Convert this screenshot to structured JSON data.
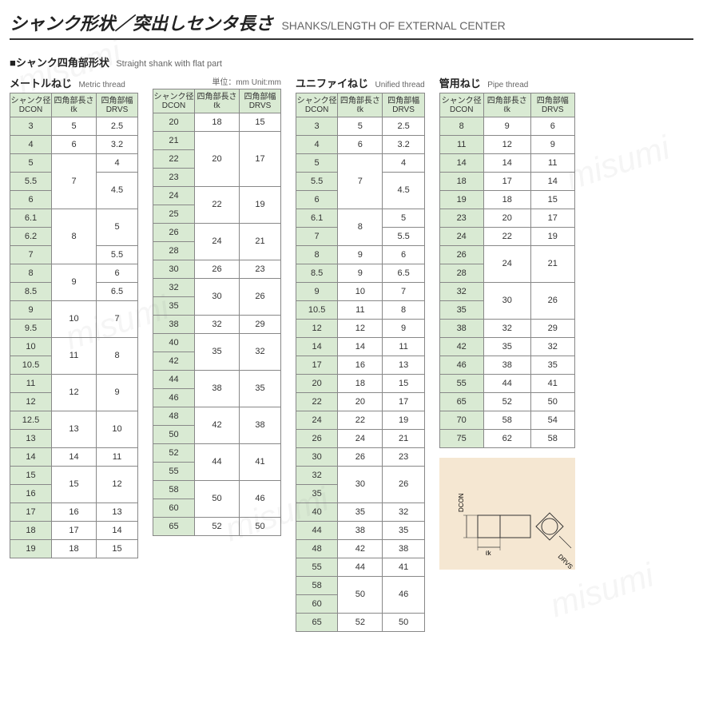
{
  "title": {
    "jp": "シャンク形状／突出しセンタ長さ",
    "en": "SHANKS/LENGTH OF EXTERNAL CENTER"
  },
  "subtitle": {
    "jp": "■シャンク四角部形状",
    "en": "Straight shank with flat part"
  },
  "unit_note": "単位：mm Unit:mm",
  "headers": {
    "dcon": {
      "l1": "シャンク径",
      "l2": "DCON"
    },
    "lk": {
      "l1": "四角部長さ",
      "l2": "ℓk"
    },
    "drvs": {
      "l1": "四角部幅",
      "l2": "DRVS"
    }
  },
  "sections": {
    "metric": {
      "jp": "メートルねじ",
      "en": "Metric thread"
    },
    "unified": {
      "jp": "ユニファイねじ",
      "en": "Unified thread"
    },
    "pipe": {
      "jp": "管用ねじ",
      "en": "Pipe thread"
    }
  },
  "colors": {
    "header_bg": "#d9ead3",
    "border": "#888888",
    "text": "#333333",
    "diagram_bg": "#f5e7d2"
  },
  "metric_a": [
    {
      "dcon": "3",
      "lk": "5",
      "drvs": "2.5",
      "lk_span": 1,
      "drvs_span": 1
    },
    {
      "dcon": "4",
      "lk": "6",
      "drvs": "3.2",
      "lk_span": 1,
      "drvs_span": 1
    },
    {
      "dcon": "5",
      "lk": "7",
      "drvs": "4",
      "lk_span": 3,
      "drvs_span": 1
    },
    {
      "dcon": "5.5",
      "lk": null,
      "drvs": "4.5",
      "lk_span": 0,
      "drvs_span": 2
    },
    {
      "dcon": "6",
      "lk": null,
      "drvs": null,
      "lk_span": 0,
      "drvs_span": 0
    },
    {
      "dcon": "6.1",
      "lk": "8",
      "drvs": "5",
      "lk_span": 3,
      "drvs_span": 2
    },
    {
      "dcon": "6.2",
      "lk": null,
      "drvs": null,
      "lk_span": 0,
      "drvs_span": 0
    },
    {
      "dcon": "7",
      "lk": null,
      "drvs": "5.5",
      "lk_span": 0,
      "drvs_span": 1
    },
    {
      "dcon": "8",
      "lk": "9",
      "drvs": "6",
      "lk_span": 2,
      "drvs_span": 1
    },
    {
      "dcon": "8.5",
      "lk": null,
      "drvs": "6.5",
      "lk_span": 0,
      "drvs_span": 1
    },
    {
      "dcon": "9",
      "lk": "10",
      "drvs": "7",
      "lk_span": 2,
      "drvs_span": 2
    },
    {
      "dcon": "9.5",
      "lk": null,
      "drvs": null,
      "lk_span": 0,
      "drvs_span": 0
    },
    {
      "dcon": "10",
      "lk": "11",
      "drvs": "8",
      "lk_span": 2,
      "drvs_span": 2
    },
    {
      "dcon": "10.5",
      "lk": null,
      "drvs": null,
      "lk_span": 0,
      "drvs_span": 0
    },
    {
      "dcon": "11",
      "lk": "12",
      "drvs": "9",
      "lk_span": 2,
      "drvs_span": 2
    },
    {
      "dcon": "12",
      "lk": null,
      "drvs": null,
      "lk_span": 0,
      "drvs_span": 0
    },
    {
      "dcon": "12.5",
      "lk": "13",
      "drvs": "10",
      "lk_span": 2,
      "drvs_span": 2
    },
    {
      "dcon": "13",
      "lk": null,
      "drvs": null,
      "lk_span": 0,
      "drvs_span": 0
    },
    {
      "dcon": "14",
      "lk": "14",
      "drvs": "11",
      "lk_span": 1,
      "drvs_span": 1
    },
    {
      "dcon": "15",
      "lk": "15",
      "drvs": "12",
      "lk_span": 2,
      "drvs_span": 2
    },
    {
      "dcon": "16",
      "lk": null,
      "drvs": null,
      "lk_span": 0,
      "drvs_span": 0
    },
    {
      "dcon": "17",
      "lk": "16",
      "drvs": "13",
      "lk_span": 1,
      "drvs_span": 1
    },
    {
      "dcon": "18",
      "lk": "17",
      "drvs": "14",
      "lk_span": 1,
      "drvs_span": 1
    },
    {
      "dcon": "19",
      "lk": "18",
      "drvs": "15",
      "lk_span": 1,
      "drvs_span": 1
    }
  ],
  "metric_b": [
    {
      "dcon": "20",
      "lk": "18",
      "drvs": "15",
      "lk_span": 1,
      "drvs_span": 1
    },
    {
      "dcon": "21",
      "lk": "20",
      "drvs": "17",
      "lk_span": 3,
      "drvs_span": 3
    },
    {
      "dcon": "22",
      "lk": null,
      "drvs": null,
      "lk_span": 0,
      "drvs_span": 0
    },
    {
      "dcon": "23",
      "lk": null,
      "drvs": null,
      "lk_span": 0,
      "drvs_span": 0
    },
    {
      "dcon": "24",
      "lk": "22",
      "drvs": "19",
      "lk_span": 2,
      "drvs_span": 2
    },
    {
      "dcon": "25",
      "lk": null,
      "drvs": null,
      "lk_span": 0,
      "drvs_span": 0
    },
    {
      "dcon": "26",
      "lk": "24",
      "drvs": "21",
      "lk_span": 2,
      "drvs_span": 2
    },
    {
      "dcon": "28",
      "lk": null,
      "drvs": null,
      "lk_span": 0,
      "drvs_span": 0
    },
    {
      "dcon": "30",
      "lk": "26",
      "drvs": "23",
      "lk_span": 1,
      "drvs_span": 1
    },
    {
      "dcon": "32",
      "lk": "30",
      "drvs": "26",
      "lk_span": 2,
      "drvs_span": 2
    },
    {
      "dcon": "35",
      "lk": null,
      "drvs": null,
      "lk_span": 0,
      "drvs_span": 0
    },
    {
      "dcon": "38",
      "lk": "32",
      "drvs": "29",
      "lk_span": 1,
      "drvs_span": 1
    },
    {
      "dcon": "40",
      "lk": "35",
      "drvs": "32",
      "lk_span": 2,
      "drvs_span": 2
    },
    {
      "dcon": "42",
      "lk": null,
      "drvs": null,
      "lk_span": 0,
      "drvs_span": 0
    },
    {
      "dcon": "44",
      "lk": "38",
      "drvs": "35",
      "lk_span": 2,
      "drvs_span": 2
    },
    {
      "dcon": "46",
      "lk": null,
      "drvs": null,
      "lk_span": 0,
      "drvs_span": 0
    },
    {
      "dcon": "48",
      "lk": "42",
      "drvs": "38",
      "lk_span": 2,
      "drvs_span": 2
    },
    {
      "dcon": "50",
      "lk": null,
      "drvs": null,
      "lk_span": 0,
      "drvs_span": 0
    },
    {
      "dcon": "52",
      "lk": "44",
      "drvs": "41",
      "lk_span": 2,
      "drvs_span": 2
    },
    {
      "dcon": "55",
      "lk": null,
      "drvs": null,
      "lk_span": 0,
      "drvs_span": 0
    },
    {
      "dcon": "58",
      "lk": "50",
      "drvs": "46",
      "lk_span": 2,
      "drvs_span": 2
    },
    {
      "dcon": "60",
      "lk": null,
      "drvs": null,
      "lk_span": 0,
      "drvs_span": 0
    },
    {
      "dcon": "65",
      "lk": "52",
      "drvs": "50",
      "lk_span": 1,
      "drvs_span": 1
    }
  ],
  "unified": [
    {
      "dcon": "3",
      "lk": "5",
      "drvs": "2.5",
      "lk_span": 1,
      "drvs_span": 1
    },
    {
      "dcon": "4",
      "lk": "6",
      "drvs": "3.2",
      "lk_span": 1,
      "drvs_span": 1
    },
    {
      "dcon": "5",
      "lk": "7",
      "drvs": "4",
      "lk_span": 3,
      "drvs_span": 1
    },
    {
      "dcon": "5.5",
      "lk": null,
      "drvs": "4.5",
      "lk_span": 0,
      "drvs_span": 2
    },
    {
      "dcon": "6",
      "lk": null,
      "drvs": null,
      "lk_span": 0,
      "drvs_span": 0
    },
    {
      "dcon": "6.1",
      "lk": "8",
      "drvs": "5",
      "lk_span": 2,
      "drvs_span": 1
    },
    {
      "dcon": "7",
      "lk": null,
      "drvs": "5.5",
      "lk_span": 0,
      "drvs_span": 1
    },
    {
      "dcon": "8",
      "lk": "9",
      "drvs": "6",
      "lk_span": 1,
      "drvs_span": 1
    },
    {
      "dcon": "8.5",
      "lk": "9",
      "drvs": "6.5",
      "lk_span": 1,
      "drvs_span": 1
    },
    {
      "dcon": "9",
      "lk": "10",
      "drvs": "7",
      "lk_span": 1,
      "drvs_span": 1
    },
    {
      "dcon": "10.5",
      "lk": "11",
      "drvs": "8",
      "lk_span": 1,
      "drvs_span": 1
    },
    {
      "dcon": "12",
      "lk": "12",
      "drvs": "9",
      "lk_span": 1,
      "drvs_span": 1
    },
    {
      "dcon": "14",
      "lk": "14",
      "drvs": "11",
      "lk_span": 1,
      "drvs_span": 1
    },
    {
      "dcon": "17",
      "lk": "16",
      "drvs": "13",
      "lk_span": 1,
      "drvs_span": 1
    },
    {
      "dcon": "20",
      "lk": "18",
      "drvs": "15",
      "lk_span": 1,
      "drvs_span": 1
    },
    {
      "dcon": "22",
      "lk": "20",
      "drvs": "17",
      "lk_span": 1,
      "drvs_span": 1
    },
    {
      "dcon": "24",
      "lk": "22",
      "drvs": "19",
      "lk_span": 1,
      "drvs_span": 1
    },
    {
      "dcon": "26",
      "lk": "24",
      "drvs": "21",
      "lk_span": 1,
      "drvs_span": 1
    },
    {
      "dcon": "30",
      "lk": "26",
      "drvs": "23",
      "lk_span": 1,
      "drvs_span": 1
    },
    {
      "dcon": "32",
      "lk": "30",
      "drvs": "26",
      "lk_span": 2,
      "drvs_span": 2
    },
    {
      "dcon": "35",
      "lk": null,
      "drvs": null,
      "lk_span": 0,
      "drvs_span": 0
    },
    {
      "dcon": "40",
      "lk": "35",
      "drvs": "32",
      "lk_span": 1,
      "drvs_span": 1
    },
    {
      "dcon": "44",
      "lk": "38",
      "drvs": "35",
      "lk_span": 1,
      "drvs_span": 1
    },
    {
      "dcon": "48",
      "lk": "42",
      "drvs": "38",
      "lk_span": 1,
      "drvs_span": 1
    },
    {
      "dcon": "55",
      "lk": "44",
      "drvs": "41",
      "lk_span": 1,
      "drvs_span": 1
    },
    {
      "dcon": "58",
      "lk": "50",
      "drvs": "46",
      "lk_span": 2,
      "drvs_span": 2
    },
    {
      "dcon": "60",
      "lk": null,
      "drvs": null,
      "lk_span": 0,
      "drvs_span": 0
    },
    {
      "dcon": "65",
      "lk": "52",
      "drvs": "50",
      "lk_span": 1,
      "drvs_span": 1
    }
  ],
  "pipe": [
    {
      "dcon": "8",
      "lk": "9",
      "drvs": "6",
      "lk_span": 1,
      "drvs_span": 1
    },
    {
      "dcon": "11",
      "lk": "12",
      "drvs": "9",
      "lk_span": 1,
      "drvs_span": 1
    },
    {
      "dcon": "14",
      "lk": "14",
      "drvs": "11",
      "lk_span": 1,
      "drvs_span": 1
    },
    {
      "dcon": "18",
      "lk": "17",
      "drvs": "14",
      "lk_span": 1,
      "drvs_span": 1
    },
    {
      "dcon": "19",
      "lk": "18",
      "drvs": "15",
      "lk_span": 1,
      "drvs_span": 1
    },
    {
      "dcon": "23",
      "lk": "20",
      "drvs": "17",
      "lk_span": 1,
      "drvs_span": 1
    },
    {
      "dcon": "24",
      "lk": "22",
      "drvs": "19",
      "lk_span": 1,
      "drvs_span": 1
    },
    {
      "dcon": "26",
      "lk": "24",
      "drvs": "21",
      "lk_span": 2,
      "drvs_span": 2
    },
    {
      "dcon": "28",
      "lk": null,
      "drvs": null,
      "lk_span": 0,
      "drvs_span": 0
    },
    {
      "dcon": "32",
      "lk": "30",
      "drvs": "26",
      "lk_span": 2,
      "drvs_span": 2
    },
    {
      "dcon": "35",
      "lk": null,
      "drvs": null,
      "lk_span": 0,
      "drvs_span": 0
    },
    {
      "dcon": "38",
      "lk": "32",
      "drvs": "29",
      "lk_span": 1,
      "drvs_span": 1
    },
    {
      "dcon": "42",
      "lk": "35",
      "drvs": "32",
      "lk_span": 1,
      "drvs_span": 1
    },
    {
      "dcon": "46",
      "lk": "38",
      "drvs": "35",
      "lk_span": 1,
      "drvs_span": 1
    },
    {
      "dcon": "55",
      "lk": "44",
      "drvs": "41",
      "lk_span": 1,
      "drvs_span": 1
    },
    {
      "dcon": "65",
      "lk": "52",
      "drvs": "50",
      "lk_span": 1,
      "drvs_span": 1
    },
    {
      "dcon": "70",
      "lk": "58",
      "drvs": "54",
      "lk_span": 1,
      "drvs_span": 1
    },
    {
      "dcon": "75",
      "lk": "62",
      "drvs": "58",
      "lk_span": 1,
      "drvs_span": 1
    }
  ],
  "diagram": {
    "labels": {
      "dcon": "DCON",
      "lk": "ℓk",
      "drvs": "DRVS"
    }
  },
  "watermark": "misumi"
}
